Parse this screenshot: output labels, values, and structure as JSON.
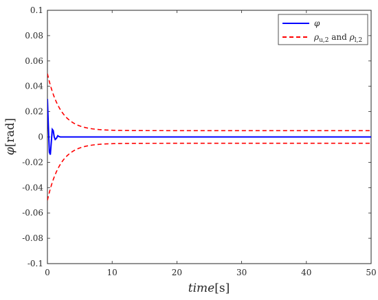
{
  "chart_data": {
    "type": "line",
    "xlabel": {
      "var": "time",
      "unit": "[s]"
    },
    "ylabel": {
      "var": "φ",
      "unit": "[rad]"
    },
    "xlim": [
      0,
      50
    ],
    "ylim": [
      -0.1,
      0.1
    ],
    "x_ticks": [
      "0",
      "10",
      "20",
      "30",
      "40",
      "50"
    ],
    "y_ticks": [
      "0.1",
      "0.08",
      "0.06",
      "0.04",
      "0.02",
      "0",
      "-0.02",
      "-0.04",
      "-0.06",
      "-0.08",
      "-0.1"
    ],
    "grid": false,
    "legend_position": "top-right",
    "legend": {
      "phi": "φ",
      "rho_prefix": "ρ",
      "rho_u_sub": "u,2",
      "and": " and ",
      "rho_l_sub": "l,2"
    },
    "series": [
      {
        "key": "phi",
        "color": "#0000ff",
        "style": "solid",
        "x": [
          0,
          0.15,
          0.3,
          0.45,
          0.6,
          0.75,
          0.9,
          1.05,
          1.2,
          1.4,
          1.6,
          1.8,
          2.0,
          2.5,
          3,
          4,
          50
        ],
        "y": [
          0.03,
          0.008,
          -0.012,
          -0.014,
          -0.004,
          0.006,
          0.005,
          0.0,
          -0.002,
          -0.001,
          0.001,
          0.0003,
          0.0,
          0.0,
          0.0,
          0.0,
          0.0
        ]
      },
      {
        "key": "rho_u",
        "color": "#ff0000",
        "style": "dashed",
        "function": {
          "initial": 0.05,
          "final": 0.005,
          "rate": 0.5
        }
      },
      {
        "key": "rho_l",
        "color": "#ff0000",
        "style": "dashed",
        "function": {
          "initial": -0.05,
          "final": -0.005,
          "rate": 0.5
        }
      }
    ]
  }
}
